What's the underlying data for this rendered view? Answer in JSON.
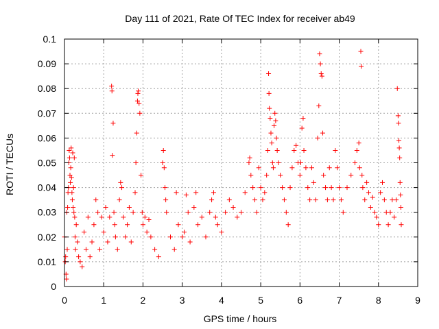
{
  "chart_data": {
    "type": "scatter",
    "title": "Day 111 of 2021, Rate Of TEC Index for receiver ab49",
    "xlabel": "GPS time / hours",
    "ylabel": "ROTI / TECUs",
    "xlim": [
      0,
      9
    ],
    "ylim": [
      0,
      0.1
    ],
    "x_ticks": [
      "0",
      "1",
      "2",
      "3",
      "4",
      "5",
      "6",
      "7",
      "8",
      "9"
    ],
    "y_ticks": [
      "0",
      "0.01",
      "0.02",
      "0.03",
      "0.04",
      "0.05",
      "0.06",
      "0.07",
      "0.08",
      "0.09",
      "0.1"
    ],
    "grid": true,
    "legend": "none",
    "marker": "+",
    "color": "#ff0000",
    "points": [
      [
        0.0,
        0.02
      ],
      [
        0.02,
        0.01
      ],
      [
        0.03,
        0.012
      ],
      [
        0.04,
        0.005
      ],
      [
        0.05,
        0.003
      ],
      [
        0.06,
        0.03
      ],
      [
        0.07,
        0.015
      ],
      [
        0.08,
        0.032
      ],
      [
        0.09,
        0.038
      ],
      [
        0.1,
        0.04
      ],
      [
        0.11,
        0.05
      ],
      [
        0.12,
        0.055
      ],
      [
        0.13,
        0.052
      ],
      [
        0.14,
        0.045
      ],
      [
        0.15,
        0.042
      ],
      [
        0.16,
        0.048
      ],
      [
        0.17,
        0.056
      ],
      [
        0.18,
        0.044
      ],
      [
        0.19,
        0.038
      ],
      [
        0.2,
        0.035
      ],
      [
        0.21,
        0.054
      ],
      [
        0.22,
        0.032
      ],
      [
        0.23,
        0.04
      ],
      [
        0.24,
        0.03
      ],
      [
        0.25,
        0.052
      ],
      [
        0.26,
        0.028
      ],
      [
        0.27,
        0.02
      ],
      [
        0.28,
        0.015
      ],
      [
        0.3,
        0.025
      ],
      [
        0.33,
        0.018
      ],
      [
        0.36,
        0.012
      ],
      [
        0.4,
        0.01
      ],
      [
        0.45,
        0.008
      ],
      [
        0.5,
        0.022
      ],
      [
        0.55,
        0.015
      ],
      [
        0.6,
        0.028
      ],
      [
        0.65,
        0.012
      ],
      [
        0.7,
        0.018
      ],
      [
        0.75,
        0.025
      ],
      [
        0.8,
        0.035
      ],
      [
        0.85,
        0.03
      ],
      [
        0.9,
        0.015
      ],
      [
        0.95,
        0.028
      ],
      [
        1.0,
        0.022
      ],
      [
        1.05,
        0.032
      ],
      [
        1.1,
        0.018
      ],
      [
        1.15,
        0.028
      ],
      [
        1.2,
        0.081
      ],
      [
        1.21,
        0.079
      ],
      [
        1.22,
        0.053
      ],
      [
        1.24,
        0.066
      ],
      [
        1.26,
        0.03
      ],
      [
        1.28,
        0.025
      ],
      [
        1.3,
        0.02
      ],
      [
        1.35,
        0.015
      ],
      [
        1.4,
        0.035
      ],
      [
        1.43,
        0.042
      ],
      [
        1.46,
        0.04
      ],
      [
        1.5,
        0.028
      ],
      [
        1.55,
        0.02
      ],
      [
        1.6,
        0.025
      ],
      [
        1.65,
        0.032
      ],
      [
        1.7,
        0.018
      ],
      [
        1.75,
        0.03
      ],
      [
        1.8,
        0.038
      ],
      [
        1.82,
        0.05
      ],
      [
        1.84,
        0.062
      ],
      [
        1.86,
        0.075
      ],
      [
        1.87,
        0.078
      ],
      [
        1.88,
        0.079
      ],
      [
        1.9,
        0.074
      ],
      [
        1.92,
        0.07
      ],
      [
        1.95,
        0.045
      ],
      [
        1.98,
        0.03
      ],
      [
        2.0,
        0.025
      ],
      [
        2.05,
        0.028
      ],
      [
        2.1,
        0.022
      ],
      [
        2.15,
        0.027
      ],
      [
        2.2,
        0.02
      ],
      [
        2.3,
        0.015
      ],
      [
        2.4,
        0.012
      ],
      [
        2.5,
        0.05
      ],
      [
        2.52,
        0.055
      ],
      [
        2.54,
        0.048
      ],
      [
        2.56,
        0.04
      ],
      [
        2.58,
        0.035
      ],
      [
        2.6,
        0.03
      ],
      [
        2.7,
        0.02
      ],
      [
        2.8,
        0.015
      ],
      [
        2.85,
        0.038
      ],
      [
        2.9,
        0.025
      ],
      [
        3.0,
        0.02
      ],
      [
        3.05,
        0.022
      ],
      [
        3.1,
        0.037
      ],
      [
        3.15,
        0.03
      ],
      [
        3.2,
        0.018
      ],
      [
        3.3,
        0.032
      ],
      [
        3.35,
        0.038
      ],
      [
        3.4,
        0.025
      ],
      [
        3.5,
        0.028
      ],
      [
        3.6,
        0.02
      ],
      [
        3.7,
        0.03
      ],
      [
        3.75,
        0.035
      ],
      [
        3.8,
        0.038
      ],
      [
        3.85,
        0.028
      ],
      [
        3.9,
        0.025
      ],
      [
        4.0,
        0.022
      ],
      [
        4.1,
        0.03
      ],
      [
        4.2,
        0.035
      ],
      [
        4.3,
        0.032
      ],
      [
        4.4,
        0.028
      ],
      [
        4.5,
        0.03
      ],
      [
        4.6,
        0.038
      ],
      [
        4.7,
        0.05
      ],
      [
        4.72,
        0.052
      ],
      [
        4.75,
        0.045
      ],
      [
        4.8,
        0.04
      ],
      [
        4.85,
        0.035
      ],
      [
        4.9,
        0.03
      ],
      [
        4.95,
        0.048
      ],
      [
        5.0,
        0.04
      ],
      [
        5.05,
        0.035
      ],
      [
        5.1,
        0.038
      ],
      [
        5.15,
        0.045
      ],
      [
        5.18,
        0.055
      ],
      [
        5.2,
        0.086
      ],
      [
        5.21,
        0.078
      ],
      [
        5.22,
        0.072
      ],
      [
        5.24,
        0.068
      ],
      [
        5.26,
        0.062
      ],
      [
        5.28,
        0.058
      ],
      [
        5.3,
        0.05
      ],
      [
        5.32,
        0.048
      ],
      [
        5.34,
        0.065
      ],
      [
        5.36,
        0.07
      ],
      [
        5.38,
        0.067
      ],
      [
        5.4,
        0.06
      ],
      [
        5.42,
        0.055
      ],
      [
        5.45,
        0.05
      ],
      [
        5.5,
        0.045
      ],
      [
        5.55,
        0.04
      ],
      [
        5.6,
        0.035
      ],
      [
        5.65,
        0.03
      ],
      [
        5.7,
        0.025
      ],
      [
        5.75,
        0.04
      ],
      [
        5.8,
        0.048
      ],
      [
        5.85,
        0.055
      ],
      [
        5.9,
        0.057
      ],
      [
        5.95,
        0.05
      ],
      [
        6.0,
        0.045
      ],
      [
        6.02,
        0.05
      ],
      [
        6.05,
        0.064
      ],
      [
        6.08,
        0.068
      ],
      [
        6.1,
        0.055
      ],
      [
        6.15,
        0.048
      ],
      [
        6.2,
        0.04
      ],
      [
        6.25,
        0.035
      ],
      [
        6.3,
        0.048
      ],
      [
        6.35,
        0.042
      ],
      [
        6.4,
        0.035
      ],
      [
        6.45,
        0.06
      ],
      [
        6.48,
        0.073
      ],
      [
        6.5,
        0.094
      ],
      [
        6.52,
        0.09
      ],
      [
        6.54,
        0.086
      ],
      [
        6.56,
        0.085
      ],
      [
        6.58,
        0.062
      ],
      [
        6.6,
        0.045
      ],
      [
        6.65,
        0.04
      ],
      [
        6.7,
        0.035
      ],
      [
        6.75,
        0.048
      ],
      [
        6.8,
        0.04
      ],
      [
        6.85,
        0.035
      ],
      [
        6.9,
        0.055
      ],
      [
        6.95,
        0.048
      ],
      [
        7.0,
        0.04
      ],
      [
        7.05,
        0.035
      ],
      [
        7.1,
        0.03
      ],
      [
        7.2,
        0.04
      ],
      [
        7.3,
        0.045
      ],
      [
        7.4,
        0.05
      ],
      [
        7.45,
        0.055
      ],
      [
        7.5,
        0.058
      ],
      [
        7.52,
        0.048
      ],
      [
        7.55,
        0.095
      ],
      [
        7.56,
        0.089
      ],
      [
        7.58,
        0.045
      ],
      [
        7.6,
        0.04
      ],
      [
        7.65,
        0.035
      ],
      [
        7.7,
        0.042
      ],
      [
        7.75,
        0.038
      ],
      [
        7.8,
        0.032
      ],
      [
        7.85,
        0.036
      ],
      [
        7.9,
        0.03
      ],
      [
        7.95,
        0.028
      ],
      [
        8.0,
        0.025
      ],
      [
        8.05,
        0.038
      ],
      [
        8.1,
        0.042
      ],
      [
        8.15,
        0.035
      ],
      [
        8.2,
        0.03
      ],
      [
        8.25,
        0.025
      ],
      [
        8.3,
        0.03
      ],
      [
        8.35,
        0.035
      ],
      [
        8.4,
        0.028
      ],
      [
        8.45,
        0.035
      ],
      [
        8.48,
        0.08
      ],
      [
        8.5,
        0.069
      ],
      [
        8.51,
        0.066
      ],
      [
        8.52,
        0.059
      ],
      [
        8.53,
        0.056
      ],
      [
        8.54,
        0.052
      ],
      [
        8.55,
        0.042
      ],
      [
        8.56,
        0.037
      ],
      [
        8.57,
        0.032
      ],
      [
        8.58,
        0.025
      ]
    ]
  }
}
